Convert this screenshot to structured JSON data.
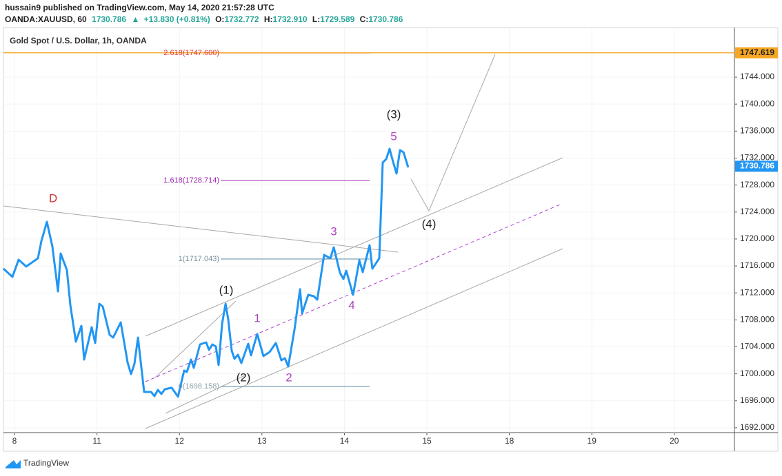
{
  "header": {
    "published": "hussain9 published on TradingView.com, May 14, 2020 21:57:28 UTC",
    "symbol": "OANDA:XAUUSD, 60",
    "last": "1730.786",
    "change_arrow": "▲",
    "change": "+13.830 (+0.81%)",
    "ohlc": [
      {
        "key": "O:",
        "value": "1732.772"
      },
      {
        "key": "H:",
        "value": "1732.910"
      },
      {
        "key": "L:",
        "value": "1729.589"
      },
      {
        "key": "C:",
        "value": "1730.786"
      }
    ]
  },
  "chart_data": {
    "type": "line",
    "title": "Gold Spot / U.S. Dollar, 1h, OANDA",
    "color": "#2196f3",
    "x": [
      -0.134,
      -0.025,
      0.05,
      0.142,
      0.284,
      0.326,
      0.393,
      0.46,
      0.527,
      0.56,
      0.635,
      0.677,
      0.744,
      0.811,
      0.844,
      0.936,
      0.978,
      1.028,
      1.07,
      1.154,
      1.196,
      1.288,
      1.371,
      1.413,
      1.455,
      1.497,
      1.572,
      1.656,
      1.697,
      1.739,
      1.781,
      1.823,
      1.906,
      1.982,
      2.057,
      2.09,
      2.14,
      2.174,
      2.249,
      2.324,
      2.358,
      2.4,
      2.441,
      2.475,
      2.517,
      2.559,
      2.592,
      2.634,
      2.667,
      2.709,
      2.751,
      2.834,
      2.868,
      2.943,
      3.018,
      3.094,
      3.169,
      3.236,
      3.278,
      3.319,
      3.395,
      3.462,
      3.487,
      3.562,
      3.629,
      3.671,
      3.754,
      3.829,
      3.871,
      3.946,
      3.988,
      4.022,
      4.105,
      4.181,
      4.222,
      4.306,
      4.339,
      4.423,
      4.465,
      4.507,
      4.548,
      4.59,
      4.632,
      4.674,
      4.716,
      4.774
    ],
    "values": [
      1715.6,
      1714.38,
      1716.93,
      1715.91,
      1717.13,
      1719.69,
      1722.55,
      1718.87,
      1712.23,
      1717.85,
      1715.4,
      1710.19,
      1704.77,
      1707.12,
      1702.11,
      1706.92,
      1704.57,
      1710.39,
      1709.98,
      1705.79,
      1705.38,
      1707.63,
      1701.71,
      1699.97,
      1701.5,
      1705.38,
      1697.31,
      1697.31,
      1696.7,
      1697.62,
      1697.01,
      1697.72,
      1697.93,
      1696.6,
      1700.48,
      1700.28,
      1702.11,
      1700.89,
      1704.36,
      1704.67,
      1703.55,
      1704.36,
      1704.06,
      1701.3,
      1707.43,
      1710.39,
      1708.04,
      1703.44,
      1702.22,
      1702.83,
      1701.6,
      1704.46,
      1702.73,
      1705.9,
      1702.63,
      1703.24,
      1704.57,
      1702.01,
      1702.32,
      1701.09,
      1706.61,
      1712.54,
      1708.96,
      1711.72,
      1711.51,
      1711.0,
      1717.64,
      1717.13,
      1718.77,
      1714.99,
      1714.07,
      1715.29,
      1711.72,
      1716.83,
      1715.09,
      1719.08,
      1715.6,
      1717.13,
      1731.34,
      1731.85,
      1733.38,
      1731.44,
      1729.7,
      1733.17,
      1732.87,
      1730.62
    ],
    "xlim": [
      -0.134,
      8.729
    ],
    "xticks": [
      {
        "value": 0,
        "label": "8"
      },
      {
        "value": 1,
        "label": "11"
      },
      {
        "value": 2,
        "label": "12"
      },
      {
        "value": 3,
        "label": "13"
      },
      {
        "value": 4,
        "label": "14"
      },
      {
        "value": 5,
        "label": "15"
      },
      {
        "value": 6,
        "label": "18"
      },
      {
        "value": 7,
        "label": "19"
      },
      {
        "value": 8,
        "label": "20"
      }
    ],
    "ylim": [
      1691.28,
      1751.36
    ],
    "yticks": [
      {
        "value": 1692,
        "label": "1692.000"
      },
      {
        "value": 1696,
        "label": "1696.000"
      },
      {
        "value": 1700,
        "label": "1700.000"
      },
      {
        "value": 1704,
        "label": "1704.000"
      },
      {
        "value": 1708,
        "label": "1708.000"
      },
      {
        "value": 1712,
        "label": "1712.000"
      },
      {
        "value": 1716,
        "label": "1716.000"
      },
      {
        "value": 1720,
        "label": "1720.000"
      },
      {
        "value": 1724,
        "label": "1724.000"
      },
      {
        "value": 1728,
        "label": "1728.000"
      },
      {
        "value": 1732,
        "label": "1732.000"
      },
      {
        "value": 1736,
        "label": "1736.000"
      },
      {
        "value": 1740,
        "label": "1740.000"
      },
      {
        "value": 1744,
        "label": "1744.000"
      }
    ],
    "grid": true,
    "price_lines": [
      {
        "value": 1747.619,
        "label": "1747.619",
        "color": "#f5a623"
      },
      {
        "value": 1730.786,
        "label": "1730.786",
        "color": "#2196f3"
      }
    ],
    "annotations": [
      {
        "text": "D",
        "color": "#d32f2f"
      },
      {
        "text": "(1)",
        "color": "#222222"
      },
      {
        "text": "(2)",
        "color": "#222222"
      },
      {
        "text": "(3)",
        "color": "#222222"
      },
      {
        "text": "(4)",
        "color": "#222222"
      },
      {
        "text": "1",
        "color": "#ab47bc"
      },
      {
        "text": "2",
        "color": "#ab47bc"
      },
      {
        "text": "3",
        "color": "#ab47bc"
      },
      {
        "text": "4",
        "color": "#ab47bc"
      },
      {
        "text": "5",
        "color": "#ab47bc"
      },
      {
        "text": "2.618(1747.600)",
        "color": "#e53935"
      },
      {
        "text": "1.618(1728.714)",
        "color": "#9c27b0"
      },
      {
        "text": "1(1717.043)",
        "color": "#78909c"
      },
      {
        "text": "0(1698.158)",
        "color": "#90a4ae"
      }
    ]
  },
  "footer": {
    "brand": "TradingView"
  }
}
